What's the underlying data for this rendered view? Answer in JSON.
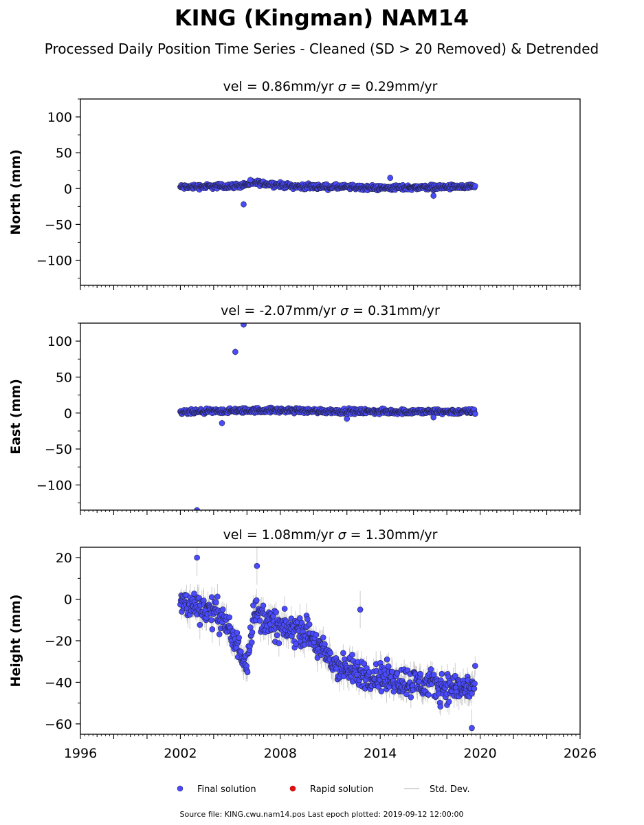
{
  "chart_data": {
    "type": "scatter",
    "title": "KING (Kingman) NAM14",
    "subtitle": "Processed Daily Position Time Series - Cleaned (SD > 20 Removed) & Detrended",
    "xlabel": "",
    "xlim": [
      1996,
      2026
    ],
    "xticks": [
      1996,
      2002,
      2008,
      2014,
      2020,
      2026
    ],
    "panels": [
      {
        "id": "north",
        "ylabel": "North (mm)",
        "title_vel": "vel = 0.86mm/yr",
        "title_sigma_label": "σ",
        "title_sigma": " = 0.29mm/yr",
        "ylim": [
          -135,
          125
        ],
        "yticks": [
          100,
          50,
          0,
          -50,
          -100
        ],
        "ytick_labels": [
          "100",
          "50",
          "0",
          "−50",
          "−100"
        ],
        "noise": {
          "start": 2002.0,
          "end": 2019.7,
          "spread": 3.5,
          "err": 3
        },
        "trend": [
          [
            2002.0,
            2
          ],
          [
            2005.5,
            4
          ],
          [
            2006.5,
            8
          ],
          [
            2009,
            3
          ],
          [
            2012,
            2
          ],
          [
            2014,
            1
          ],
          [
            2017,
            2
          ],
          [
            2019.7,
            2
          ]
        ],
        "outliers": [
          [
            2005.8,
            -22
          ],
          [
            2014.6,
            15
          ],
          [
            2017.2,
            -10
          ],
          [
            2006.2,
            12
          ]
        ]
      },
      {
        "id": "east",
        "ylabel": "East (mm)",
        "title_vel": "vel = -2.07mm/yr",
        "title_sigma_label": "σ",
        "title_sigma": " = 0.31mm/yr",
        "ylim": [
          -135,
          125
        ],
        "yticks": [
          100,
          50,
          0,
          -50,
          -100
        ],
        "ytick_labels": [
          "100",
          "50",
          "0",
          "−50",
          "−100"
        ],
        "noise": {
          "start": 2002.0,
          "end": 2019.7,
          "spread": 3.5,
          "err": 3
        },
        "trend": [
          [
            2002.0,
            1
          ],
          [
            2005,
            3
          ],
          [
            2007,
            4
          ],
          [
            2010,
            3
          ],
          [
            2014,
            2
          ],
          [
            2017,
            2
          ],
          [
            2019.7,
            2
          ]
        ],
        "outliers": [
          [
            2003.0,
            -135
          ],
          [
            2005.3,
            85
          ],
          [
            2005.8,
            123
          ],
          [
            2004.5,
            -14
          ],
          [
            2012.0,
            -8
          ],
          [
            2017.2,
            -6
          ]
        ]
      },
      {
        "id": "height",
        "ylabel": "Height (mm)",
        "title_vel": "vel = 1.08mm/yr",
        "title_sigma_label": "σ",
        "title_sigma": " = 1.30mm/yr",
        "ylim": [
          -65,
          25
        ],
        "yticks": [
          20,
          0,
          -20,
          -40,
          -60
        ],
        "ytick_labels": [
          "20",
          "0",
          "−20",
          "−40",
          "−60"
        ],
        "noise": {
          "start": 2002.0,
          "end": 2019.7,
          "spread": 7,
          "err": 5
        },
        "trend": [
          [
            2002.0,
            -2
          ],
          [
            2003.0,
            -3
          ],
          [
            2004.5,
            -8
          ],
          [
            2005.2,
            -20
          ],
          [
            2006.0,
            -30
          ],
          [
            2006.4,
            -6
          ],
          [
            2007.5,
            -12
          ],
          [
            2008.5,
            -15
          ],
          [
            2009.5,
            -15
          ],
          [
            2010.5,
            -25
          ],
          [
            2011.5,
            -33
          ],
          [
            2013.0,
            -36
          ],
          [
            2014.5,
            -38
          ],
          [
            2016.0,
            -40
          ],
          [
            2017.5,
            -42
          ],
          [
            2019.0,
            -43
          ],
          [
            2019.7,
            -42
          ]
        ],
        "outliers": [
          [
            2003.0,
            20
          ],
          [
            2006.6,
            16
          ],
          [
            2012.8,
            -5
          ],
          [
            2019.5,
            -62
          ]
        ]
      }
    ],
    "legend": {
      "placement": "bottom-center",
      "items": [
        {
          "label": "Final solution",
          "kind": "marker",
          "color": "#4a4aff"
        },
        {
          "label": "Rapid solution",
          "kind": "marker",
          "color": "#e01010"
        },
        {
          "label": "Std. Dev.",
          "kind": "line",
          "color": "#c8c8c8"
        }
      ]
    },
    "footer": "Source file: KING.cwu.nam14.pos  Last epoch plotted: 2019-09-12 12:00:00",
    "colors": {
      "point_fill": "#4a4aff",
      "point_edge": "#222244",
      "errorbar": "#b8b8b8"
    }
  }
}
